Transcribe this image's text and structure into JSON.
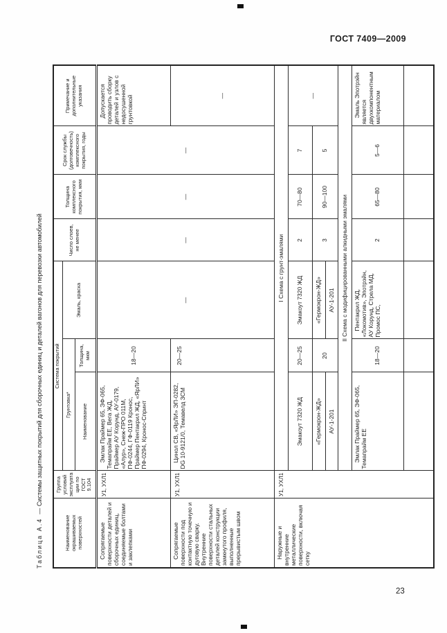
{
  "page": {
    "document_code": "ГОСТ 7409—2009",
    "page_number": "23"
  },
  "table": {
    "title_label": "Таблица А.4",
    "title_text": "— Системы защитных покрытий для сборочных единиц и деталей вагонов для перевозки автомобилей",
    "matrix": [
      [
        {
          "t": "Наименование окрашиваемых поверхностей",
          "rs": 3,
          "c": "hdr dbl"
        },
        {
          "t": "Группа условий эксплуатации по ГОСТ 9.104",
          "rs": 3,
          "c": "hdr dbl"
        },
        {
          "t": "Система покрытий",
          "cs": 3,
          "c": "hdr"
        },
        {
          "t": "Число слоев, не менее",
          "rs": 3,
          "c": "hdr dbl"
        },
        {
          "t": "Толщина комплексного покрытия, мкм",
          "rs": 3,
          "c": "hdr dbl"
        },
        {
          "t": "Срок службы (долговечность) комплексного покрытия, годы",
          "rs": 3,
          "c": "hdr dbl"
        },
        {
          "t": "Примечание и дополнительные указания",
          "rs": 3,
          "c": "hdr dbl"
        }
      ],
      [
        {
          "t": "Грунтовка*",
          "cs": 2,
          "c": "hdr"
        },
        {
          "t": "Эмаль, краска",
          "rs": 2,
          "c": "hdr dbl"
        }
      ],
      [
        {
          "t": "Наименование",
          "c": "hdr dbl"
        },
        {
          "t": "Толщина, мкм",
          "c": "hdr dbl"
        }
      ],
      [
        {
          "t": "Сопрягаемые поверхности деталей и сборочных единиц, соединяемые болтами и заклепками",
          "c": "txt"
        },
        {
          "t": "У1, УХЛ1",
          "c": "grp"
        },
        {
          "t": "Эмлак Праймер 65, ЭФ-065, Темапрайм ЕЕ, Вега ЖД, Праймер АУ Корунд, АУ-0179, «Алур», Снеж-ПРО 011М, ПФ-0244, ГФ-0119 Кронос, Праймер Пентакрил ЖД, «ЯрЛИ» ПФ-0294, Кронос-Спринт",
          "c": "txt"
        },
        {
          "t": "18—20",
          "c": "num"
        },
        {
          "t": "—",
          "rs": 2,
          "c": "dash"
        },
        {
          "t": "—",
          "rs": 2,
          "c": "dash"
        },
        {
          "t": "—",
          "rs": 2,
          "c": "dash"
        },
        {
          "t": "—",
          "rs": 2,
          "c": "dash"
        },
        {
          "t": "Допускается проводить сборку деталей и узлов с недосушенной грунтовкой",
          "c": "txt"
        }
      ],
      [
        {
          "t": "Сопрягаемые поверхности под контактную точечную и дуговую сварку.\nВнутренние поверхности стальных деталей конструкции замкнутого профиля, выполненные прерывистым швом",
          "c": "txt"
        },
        {
          "t": "У1, УХЛ1",
          "c": "grp"
        },
        {
          "t": "Цинол СВ, «ЯрЛИ» ЭП-0282, DG 10-9121/0, Темавелд ЗСМ",
          "c": "txt"
        },
        {
          "t": "20—25",
          "c": "num topv"
        },
        {
          "t": "—",
          "c": "dash"
        }
      ],
      [
        {
          "t": "Наружные и внутренние металлические поверхности, включая сетку",
          "rs": 7,
          "c": "txt"
        },
        {
          "t": "У1, УХЛ1",
          "rs": 7,
          "c": "grp"
        },
        {
          "t": "I Схема с грунт-эмалями",
          "cs": 7,
          "c": "sec"
        }
      ],
      [
        {
          "t": "Эмакоут 7320 ЖД",
          "c": "num"
        },
        {
          "t": "20—25",
          "c": "num"
        },
        {
          "t": "Эмакоут 7320 ЖД",
          "c": "num"
        },
        {
          "t": "2",
          "c": "num"
        },
        {
          "t": "70—80",
          "c": "num"
        },
        {
          "t": "7",
          "c": "num"
        },
        {
          "t": "—",
          "rs": 3,
          "c": "dash"
        }
      ],
      [
        {
          "t": "«Гермокрон-ЖД»",
          "c": "num"
        },
        {
          "t": "20",
          "rs": 2,
          "c": "num"
        },
        {
          "t": "«Гермокрон-ЖД»",
          "c": "num"
        },
        {
          "t": "3",
          "rs": 2,
          "c": "num"
        },
        {
          "t": "90—100",
          "rs": 2,
          "c": "num"
        },
        {
          "t": "5",
          "rs": 2,
          "c": "num"
        }
      ],
      [
        {
          "t": "АУ-1-201",
          "c": "num"
        },
        {
          "t": "АУ-1-201",
          "c": "num"
        }
      ],
      [
        {
          "t": "II Схема с модифицированными алкидными эмалями",
          "cs": 7,
          "c": "sec"
        }
      ],
      [
        {
          "t": "Эмлак Праймер 65, ЭФ-065, Темапрайм ЕЕ",
          "c": "txt"
        },
        {
          "t": "18—20",
          "c": "num"
        },
        {
          "t": "Пентакрил ЖД, «Локомотив», Эпотрэйн, АУ Корунд, Стрела МД, Промос ПС,",
          "c": "txt"
        },
        {
          "t": "2",
          "c": "num"
        },
        {
          "t": "65—80",
          "c": "num"
        },
        {
          "t": "5—6",
          "c": "num"
        },
        {
          "t": "Эмаль Эпотрэйн является двухкомпонентным материалом",
          "c": "txt"
        }
      ],
      [
        {
          "t": "",
          "c": "num"
        },
        {
          "t": "",
          "c": "num"
        },
        {
          "t": "",
          "c": "num"
        },
        {
          "t": "",
          "c": "num"
        },
        {
          "t": "",
          "c": "num"
        },
        {
          "t": "",
          "c": "num"
        },
        {
          "t": "",
          "c": "num"
        }
      ]
    ]
  }
}
